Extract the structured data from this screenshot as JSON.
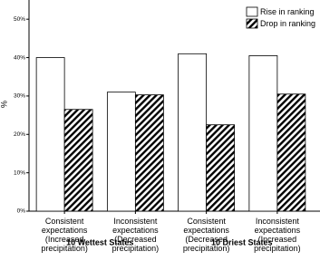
{
  "chart_data": {
    "type": "bar",
    "y_label": "%",
    "categories": [
      "Consistent\nexpectations\n(Increased\nprecipitation)",
      "Inconsistent\nexpectations\n(Decreased\nprecipitation)",
      "Consistent\nexpectations\n(Decreased\nprecipitation)",
      "Inconsistent\nexpectations\n(Increased\nprecipitation)"
    ],
    "groups": [
      "10 Wettest States",
      "10 Driest States"
    ],
    "series": [
      {
        "name": "Rise in ranking",
        "color": "#ffffff",
        "pattern": "solid",
        "values": [
          40,
          31,
          41,
          40.5
        ]
      },
      {
        "name": "Drop in ranking",
        "color": "#000000",
        "pattern": "hatch",
        "values": [
          26.5,
          30.3,
          22.5,
          30.5
        ]
      }
    ],
    "ylim": [
      0,
      55
    ],
    "yticks": [
      {
        "value": 0,
        "label": "0%"
      },
      {
        "value": 10,
        "label": "10%"
      },
      {
        "value": 20,
        "label": "20%"
      },
      {
        "value": 30,
        "label": "30%"
      },
      {
        "value": 40,
        "label": "40%"
      },
      {
        "value": 50,
        "label": "50%"
      }
    ],
    "grid": false,
    "legend": "upper-right"
  }
}
